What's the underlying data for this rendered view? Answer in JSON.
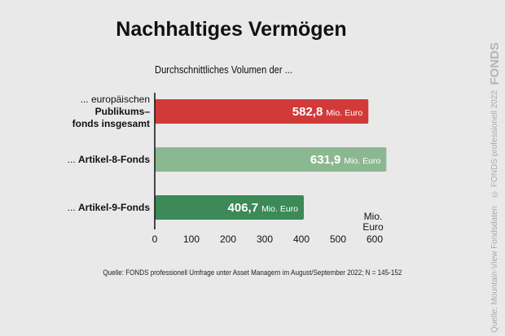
{
  "title": "Nachhaltiges Vermögen",
  "subtitle": "Durchschnittliches Volumen der ...",
  "source": "Quelle: FONDS professionell Umfrage unter Asset Managern im August/September 2022; N = 145-152",
  "sidebar": {
    "logo": "FONDS",
    "copyright": "© FONDS professionell 2022",
    "data_source": "Quelle: Mountain-View Fondsdaten"
  },
  "colors": {
    "background": "#e9e9e9",
    "bar1": "#d23a3a",
    "bar2": "#8cb891",
    "bar3": "#3b8a57"
  },
  "chart_data": {
    "type": "bar",
    "orientation": "horizontal",
    "categories": [
      "... europäischen Publikums-fonds insgesamt",
      "... Artikel-8-Fonds",
      "... Artikel-9-Fonds"
    ],
    "category_lines": [
      [
        {
          "text": "... europäischen",
          "bold": false
        },
        {
          "text": "Publikums–",
          "bold": true
        },
        {
          "text": "fonds insgesamt",
          "bold": true
        }
      ],
      [
        {
          "text": "... ",
          "bold": false
        },
        {
          "text": "Artikel-8-Fonds",
          "bold": true
        }
      ],
      [
        {
          "text": "... ",
          "bold": false
        },
        {
          "text": "Artikel-9-Fonds",
          "bold": true
        }
      ]
    ],
    "values": [
      582.8,
      631.9,
      406.7
    ],
    "value_labels": [
      "582,8",
      "631,9",
      "406,7"
    ],
    "value_unit": "Mio. Euro",
    "bar_colors": [
      "#d23a3a",
      "#8cb891",
      "#3b8a57"
    ],
    "xlim": [
      0,
      600
    ],
    "xticks": [
      0,
      100,
      200,
      300,
      400,
      500,
      600
    ],
    "xlabel": "Mio. Euro",
    "grid": false
  }
}
